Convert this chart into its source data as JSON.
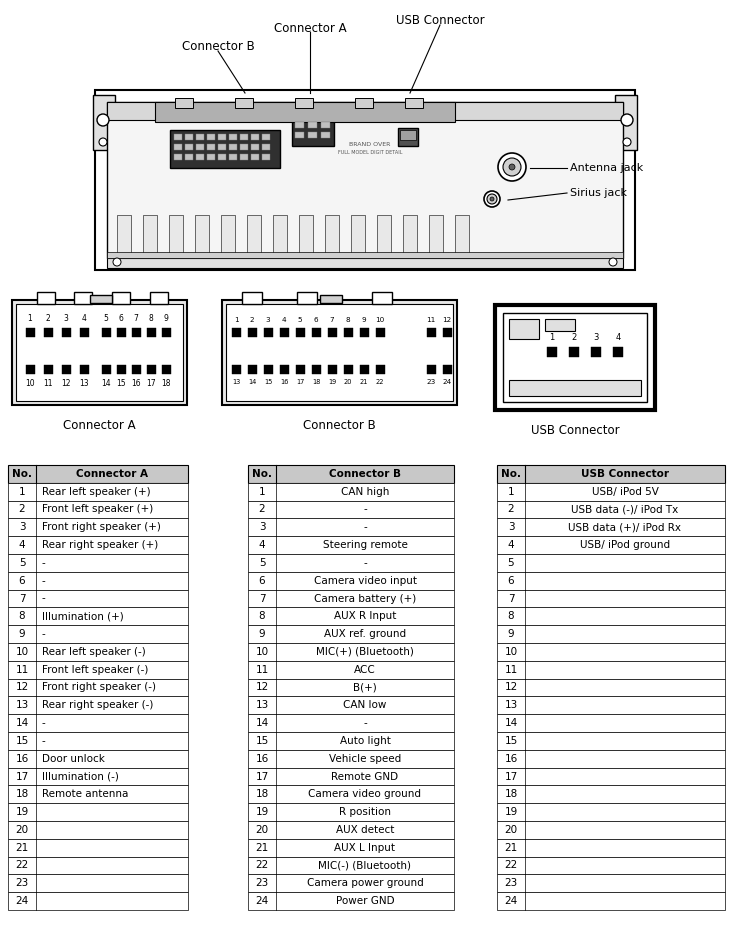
{
  "bg_color": "#ffffff",
  "connector_a_data": [
    [
      1,
      "Rear left speaker (+)"
    ],
    [
      2,
      "Front left speaker (+)"
    ],
    [
      3,
      "Front right speaker (+)"
    ],
    [
      4,
      "Rear right speaker (+)"
    ],
    [
      5,
      "-"
    ],
    [
      6,
      "-"
    ],
    [
      7,
      "-"
    ],
    [
      8,
      "Illumination (+)"
    ],
    [
      9,
      "-"
    ],
    [
      10,
      "Rear left speaker (-)"
    ],
    [
      11,
      "Front left speaker (-)"
    ],
    [
      12,
      "Front right speaker (-)"
    ],
    [
      13,
      "Rear right speaker (-)"
    ],
    [
      14,
      "-"
    ],
    [
      15,
      "-"
    ],
    [
      16,
      "Door unlock"
    ],
    [
      17,
      "Illumination (-)"
    ],
    [
      18,
      "Remote antenna"
    ],
    [
      19,
      ""
    ],
    [
      20,
      ""
    ],
    [
      21,
      ""
    ],
    [
      22,
      ""
    ],
    [
      23,
      ""
    ],
    [
      24,
      ""
    ]
  ],
  "connector_b_data": [
    [
      1,
      "CAN high"
    ],
    [
      2,
      "-"
    ],
    [
      3,
      "-"
    ],
    [
      4,
      "Steering remote"
    ],
    [
      5,
      "-"
    ],
    [
      6,
      "Camera video input"
    ],
    [
      7,
      "Camera battery (+)"
    ],
    [
      8,
      "AUX R Input"
    ],
    [
      9,
      "AUX ref. ground"
    ],
    [
      10,
      "MIC(+) (Bluetooth)"
    ],
    [
      11,
      "ACC"
    ],
    [
      12,
      "B(+)"
    ],
    [
      13,
      "CAN low"
    ],
    [
      14,
      "-"
    ],
    [
      15,
      "Auto light"
    ],
    [
      16,
      "Vehicle speed"
    ],
    [
      17,
      "Remote GND"
    ],
    [
      18,
      "Camera video ground"
    ],
    [
      19,
      "R position"
    ],
    [
      20,
      "AUX detect"
    ],
    [
      21,
      "AUX L Input"
    ],
    [
      22,
      "MIC(-) (Bluetooth)"
    ],
    [
      23,
      "Camera power ground"
    ],
    [
      24,
      "Power GND"
    ]
  ],
  "usb_data": [
    [
      1,
      "USB/ iPod 5V"
    ],
    [
      2,
      "USB data (-)/ iPod Tx"
    ],
    [
      3,
      "USB data (+)/ iPod Rx"
    ],
    [
      4,
      "USB/ iPod ground"
    ],
    [
      5,
      ""
    ],
    [
      6,
      ""
    ],
    [
      7,
      ""
    ],
    [
      8,
      ""
    ],
    [
      9,
      ""
    ],
    [
      10,
      ""
    ],
    [
      11,
      ""
    ],
    [
      12,
      ""
    ],
    [
      13,
      ""
    ],
    [
      14,
      ""
    ],
    [
      15,
      ""
    ],
    [
      16,
      ""
    ],
    [
      17,
      ""
    ],
    [
      18,
      ""
    ],
    [
      19,
      ""
    ],
    [
      20,
      ""
    ],
    [
      21,
      ""
    ],
    [
      22,
      ""
    ],
    [
      23,
      ""
    ],
    [
      24,
      ""
    ]
  ],
  "header_bg": "#c8c8c8",
  "text_color": "#000000",
  "label_conn_a": "Connector A",
  "label_conn_b": "Connector B",
  "label_usb": "USB Connector",
  "label_antenna": "Antenna jack",
  "label_sirius": "Sirius jack",
  "device_text1": "BRAND OVER",
  "device_text2": "FULL MODEL DIGIT DETAIL"
}
